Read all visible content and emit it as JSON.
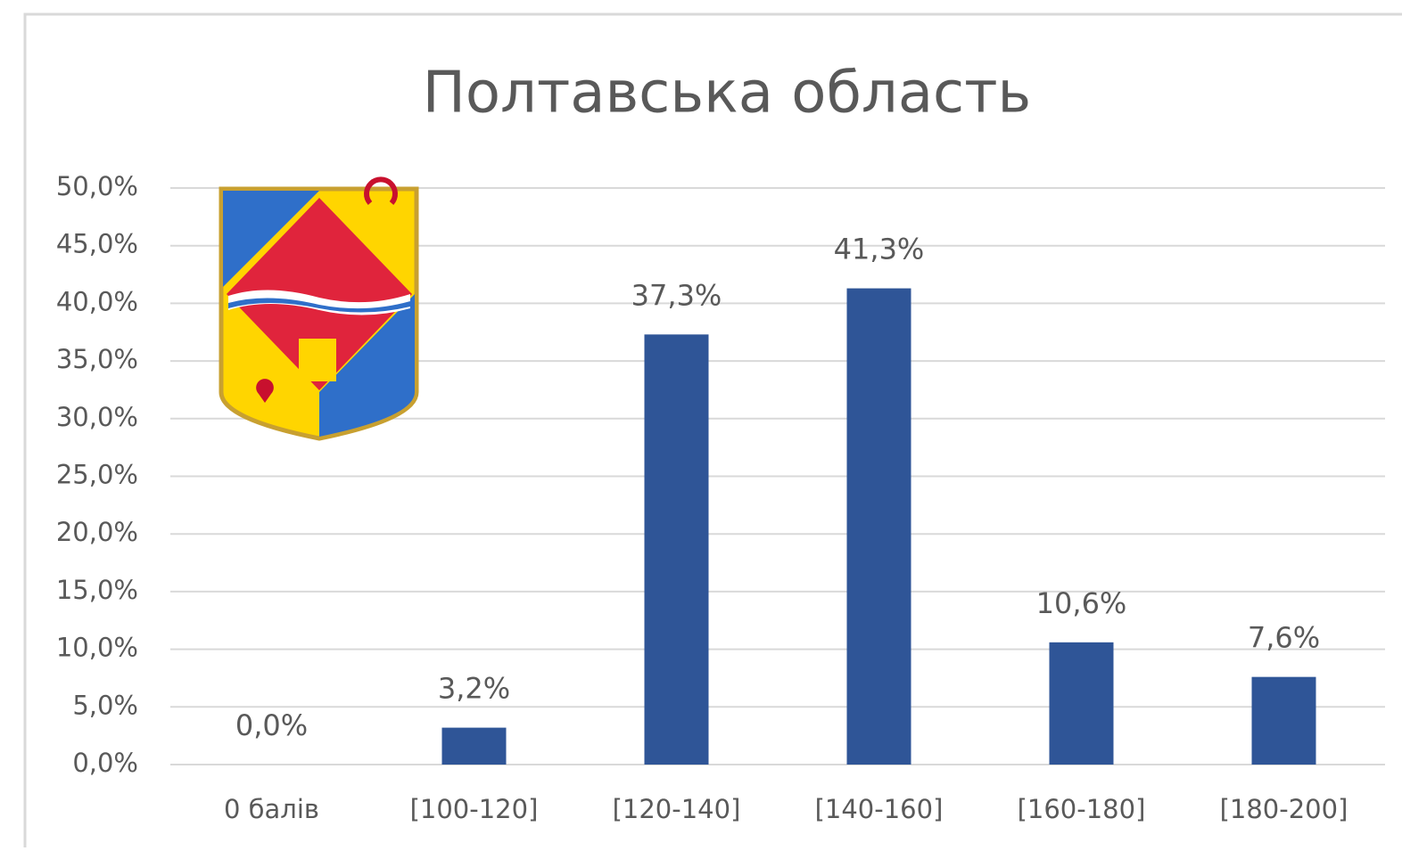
{
  "chart_data": {
    "type": "bar",
    "title": "Полтавська область",
    "categories": [
      "0 балів",
      "[100-120]",
      "[120-140]",
      "[140-160]",
      "[160-180]",
      "[180-200]"
    ],
    "values": [
      0,
      3.2,
      37.3,
      41.3,
      10.6,
      7.6
    ],
    "value_labels": [
      "0,0%",
      "3,2%",
      "37,3%",
      "41,3%",
      "10,6%",
      "7,6%"
    ],
    "color": "#2f5597",
    "ylim": [
      0,
      50
    ],
    "yticks": [
      {
        "value": 0,
        "label": "0,0%"
      },
      {
        "value": 5,
        "label": "5,0%"
      },
      {
        "value": 10,
        "label": "10,0%"
      },
      {
        "value": 15,
        "label": "15,0%"
      },
      {
        "value": 20,
        "label": "20,0%"
      },
      {
        "value": 25,
        "label": "25,0%"
      },
      {
        "value": 30,
        "label": "30,0%"
      },
      {
        "value": 35,
        "label": "35,0%"
      },
      {
        "value": 40,
        "label": "40,0%"
      },
      {
        "value": 45,
        "label": "45,0%"
      },
      {
        "value": 50,
        "label": "50,0%"
      }
    ],
    "grid": true
  }
}
